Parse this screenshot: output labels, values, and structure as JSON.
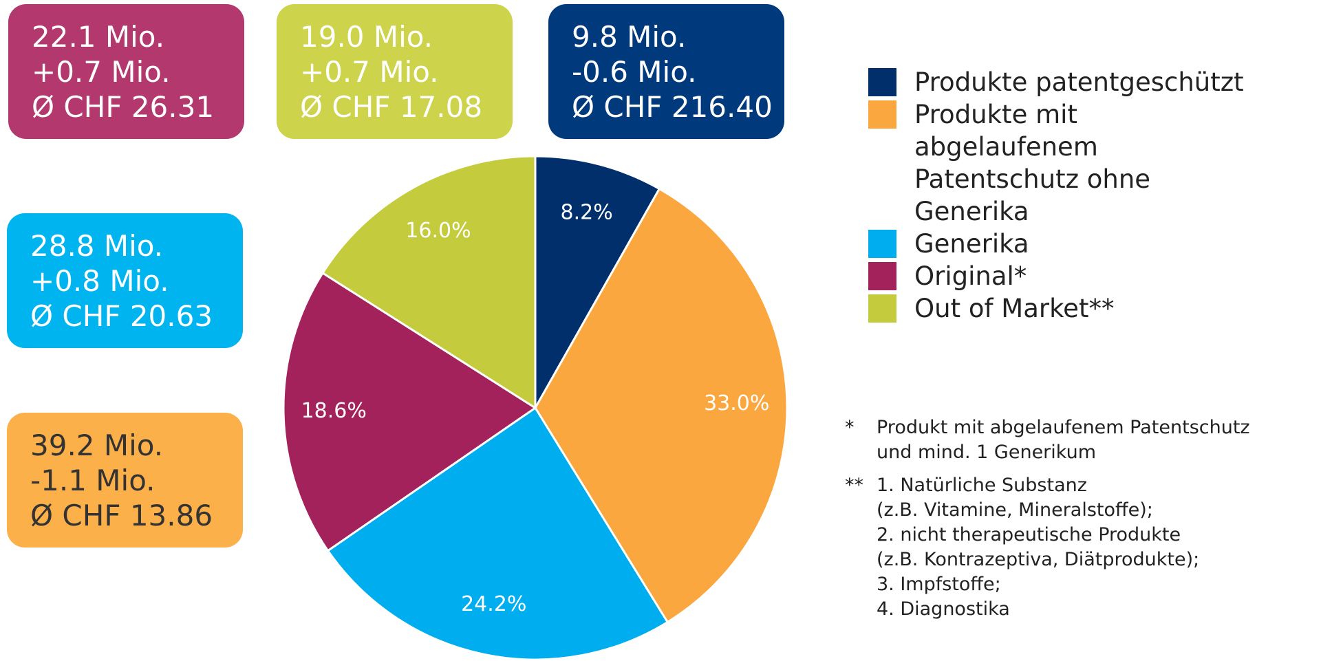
{
  "chart_data": {
    "type": "pie",
    "categories": [
      "Produkte patentgeschützt",
      "Produkte mit abgelaufenem Patentschutz ohne Generika",
      "Generika",
      "Original*",
      "Out of Market**"
    ],
    "values": [
      8.2,
      33.0,
      24.2,
      18.6,
      16.0
    ],
    "value_labels": [
      "8.2%",
      "33.0%",
      "24.2%",
      "18.6%",
      "16.0%"
    ],
    "colors": [
      "#002f6c",
      "#f9a73e",
      "#00aeef",
      "#a3225c",
      "#c4cb3c"
    ]
  },
  "boxes": [
    {
      "lines": [
        "22.1 Mio.",
        "+0.7 Mio.",
        "Ø CHF 26.31"
      ],
      "color": "#b3386d",
      "text_color": "#ffffff"
    },
    {
      "lines": [
        "19.0 Mio.",
        "+0.7 Mio.",
        "Ø CHF 17.08"
      ],
      "color": "#cdd34a",
      "text_color": "#ffffff"
    },
    {
      "lines": [
        "9.8 Mio.",
        "-0.6 Mio.",
        "Ø CHF 216.40"
      ],
      "color": "#003a7d",
      "text_color": "#ffffff"
    },
    {
      "lines": [
        "28.8 Mio.",
        "+0.8 Mio.",
        "Ø CHF 20.63"
      ],
      "color": "#00b5ef",
      "text_color": "#ffffff"
    },
    {
      "lines": [
        "39.2 Mio.",
        "-1.1 Mio.",
        "Ø CHF 13.86"
      ],
      "color": "#fbb04a",
      "text_color": "#333333"
    }
  ],
  "footnotes": [
    {
      "marker": "*",
      "lines": [
        "Produkt mit abgelaufenem Patentschutz",
        "und mind. 1 Generikum"
      ]
    },
    {
      "marker": "**",
      "lines": [
        "1. Natürliche Substanz",
        "(z.B. Vitamine, Mineralstoffe);",
        "2. nicht therapeutische Produkte",
        "(z.B. Kontrazeptiva, Diätprodukte);",
        "3. Impfstoffe;",
        "4. Diagnostika"
      ]
    }
  ]
}
